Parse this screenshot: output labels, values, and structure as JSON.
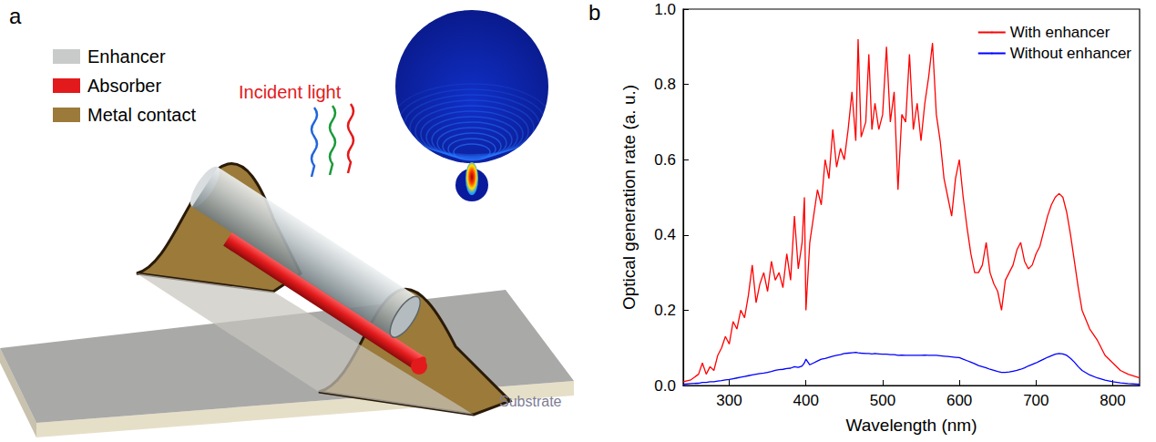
{
  "diagram": {
    "panel": "a",
    "legend": [
      {
        "label": "Enhancer",
        "color": "#c9cbcb"
      },
      {
        "label": "Absorber",
        "color": "#e31a1c"
      },
      {
        "label": "Metal contact",
        "color": "#9b7a3a"
      }
    ],
    "incident_light": "Incident light",
    "substrate": "Substrate"
  },
  "chart_data": {
    "panel": "b",
    "type": "line",
    "x_label": "Wavelength (nm)",
    "y_label": "Optical generation rate (a. u.)",
    "x": [
      240,
      250,
      260,
      265,
      270,
      275,
      280,
      285,
      290,
      295,
      300,
      305,
      310,
      315,
      320,
      325,
      330,
      335,
      340,
      345,
      350,
      355,
      360,
      365,
      370,
      375,
      380,
      385,
      390,
      395,
      398,
      400,
      405,
      410,
      415,
      420,
      425,
      430,
      435,
      440,
      445,
      450,
      455,
      460,
      465,
      468,
      472,
      478,
      482,
      486,
      490,
      495,
      500,
      505,
      510,
      515,
      520,
      525,
      530,
      535,
      540,
      545,
      550,
      555,
      560,
      565,
      570,
      575,
      580,
      585,
      590,
      595,
      600,
      605,
      610,
      615,
      620,
      625,
      630,
      635,
      640,
      645,
      650,
      655,
      660,
      665,
      670,
      675,
      680,
      685,
      690,
      695,
      700,
      705,
      710,
      715,
      720,
      725,
      730,
      735,
      740,
      745,
      750,
      755,
      760,
      770,
      780,
      790,
      800,
      810,
      820,
      835
    ],
    "series": [
      {
        "name": "With enhancer",
        "color": "#ff0000",
        "values": [
          0.01,
          0.015,
          0.03,
          0.06,
          0.03,
          0.05,
          0.04,
          0.08,
          0.1,
          0.13,
          0.11,
          0.17,
          0.15,
          0.2,
          0.18,
          0.24,
          0.32,
          0.22,
          0.27,
          0.3,
          0.25,
          0.33,
          0.28,
          0.3,
          0.26,
          0.35,
          0.28,
          0.45,
          0.31,
          0.38,
          0.5,
          0.2,
          0.38,
          0.45,
          0.52,
          0.48,
          0.6,
          0.55,
          0.68,
          0.58,
          0.63,
          0.6,
          0.68,
          0.78,
          0.65,
          0.92,
          0.66,
          0.7,
          0.88,
          0.68,
          0.75,
          0.68,
          0.72,
          0.9,
          0.7,
          0.78,
          0.52,
          0.72,
          0.7,
          0.88,
          0.68,
          0.75,
          0.65,
          0.75,
          0.82,
          0.91,
          0.72,
          0.65,
          0.55,
          0.5,
          0.45,
          0.55,
          0.6,
          0.5,
          0.42,
          0.35,
          0.3,
          0.3,
          0.32,
          0.38,
          0.3,
          0.27,
          0.25,
          0.2,
          0.28,
          0.3,
          0.32,
          0.36,
          0.38,
          0.33,
          0.31,
          0.32,
          0.35,
          0.37,
          0.41,
          0.45,
          0.48,
          0.5,
          0.51,
          0.5,
          0.46,
          0.4,
          0.33,
          0.26,
          0.2,
          0.15,
          0.12,
          0.08,
          0.06,
          0.04,
          0.03,
          0.02
        ]
      },
      {
        "name": "Without enhancer",
        "color": "#0000ff",
        "values": [
          0.003,
          0.005,
          0.006,
          0.008,
          0.008,
          0.01,
          0.01,
          0.012,
          0.013,
          0.015,
          0.016,
          0.018,
          0.02,
          0.022,
          0.024,
          0.026,
          0.028,
          0.03,
          0.032,
          0.033,
          0.035,
          0.037,
          0.04,
          0.042,
          0.043,
          0.045,
          0.046,
          0.05,
          0.048,
          0.052,
          0.06,
          0.07,
          0.055,
          0.06,
          0.065,
          0.07,
          0.072,
          0.075,
          0.078,
          0.08,
          0.082,
          0.085,
          0.086,
          0.087,
          0.088,
          0.087,
          0.086,
          0.085,
          0.085,
          0.084,
          0.085,
          0.084,
          0.083,
          0.083,
          0.082,
          0.082,
          0.08,
          0.081,
          0.08,
          0.08,
          0.08,
          0.08,
          0.08,
          0.081,
          0.08,
          0.08,
          0.08,
          0.079,
          0.078,
          0.077,
          0.076,
          0.075,
          0.074,
          0.07,
          0.066,
          0.062,
          0.058,
          0.053,
          0.05,
          0.047,
          0.043,
          0.04,
          0.037,
          0.035,
          0.035,
          0.036,
          0.038,
          0.04,
          0.043,
          0.047,
          0.052,
          0.056,
          0.06,
          0.065,
          0.07,
          0.075,
          0.079,
          0.083,
          0.085,
          0.084,
          0.08,
          0.072,
          0.062,
          0.05,
          0.04,
          0.028,
          0.02,
          0.014,
          0.01,
          0.007,
          0.005,
          0.003
        ]
      }
    ],
    "xlim": [
      240,
      835
    ],
    "xticks": [
      300,
      400,
      500,
      600,
      700,
      800
    ],
    "ylim": [
      0,
      1
    ],
    "yticks": [
      {
        "value": 0,
        "label": "0.0"
      },
      0.2,
      0.4,
      0.6,
      0.8,
      {
        "value": 1,
        "label": "1.0"
      }
    ],
    "legend": "upper right",
    "grid": false
  }
}
